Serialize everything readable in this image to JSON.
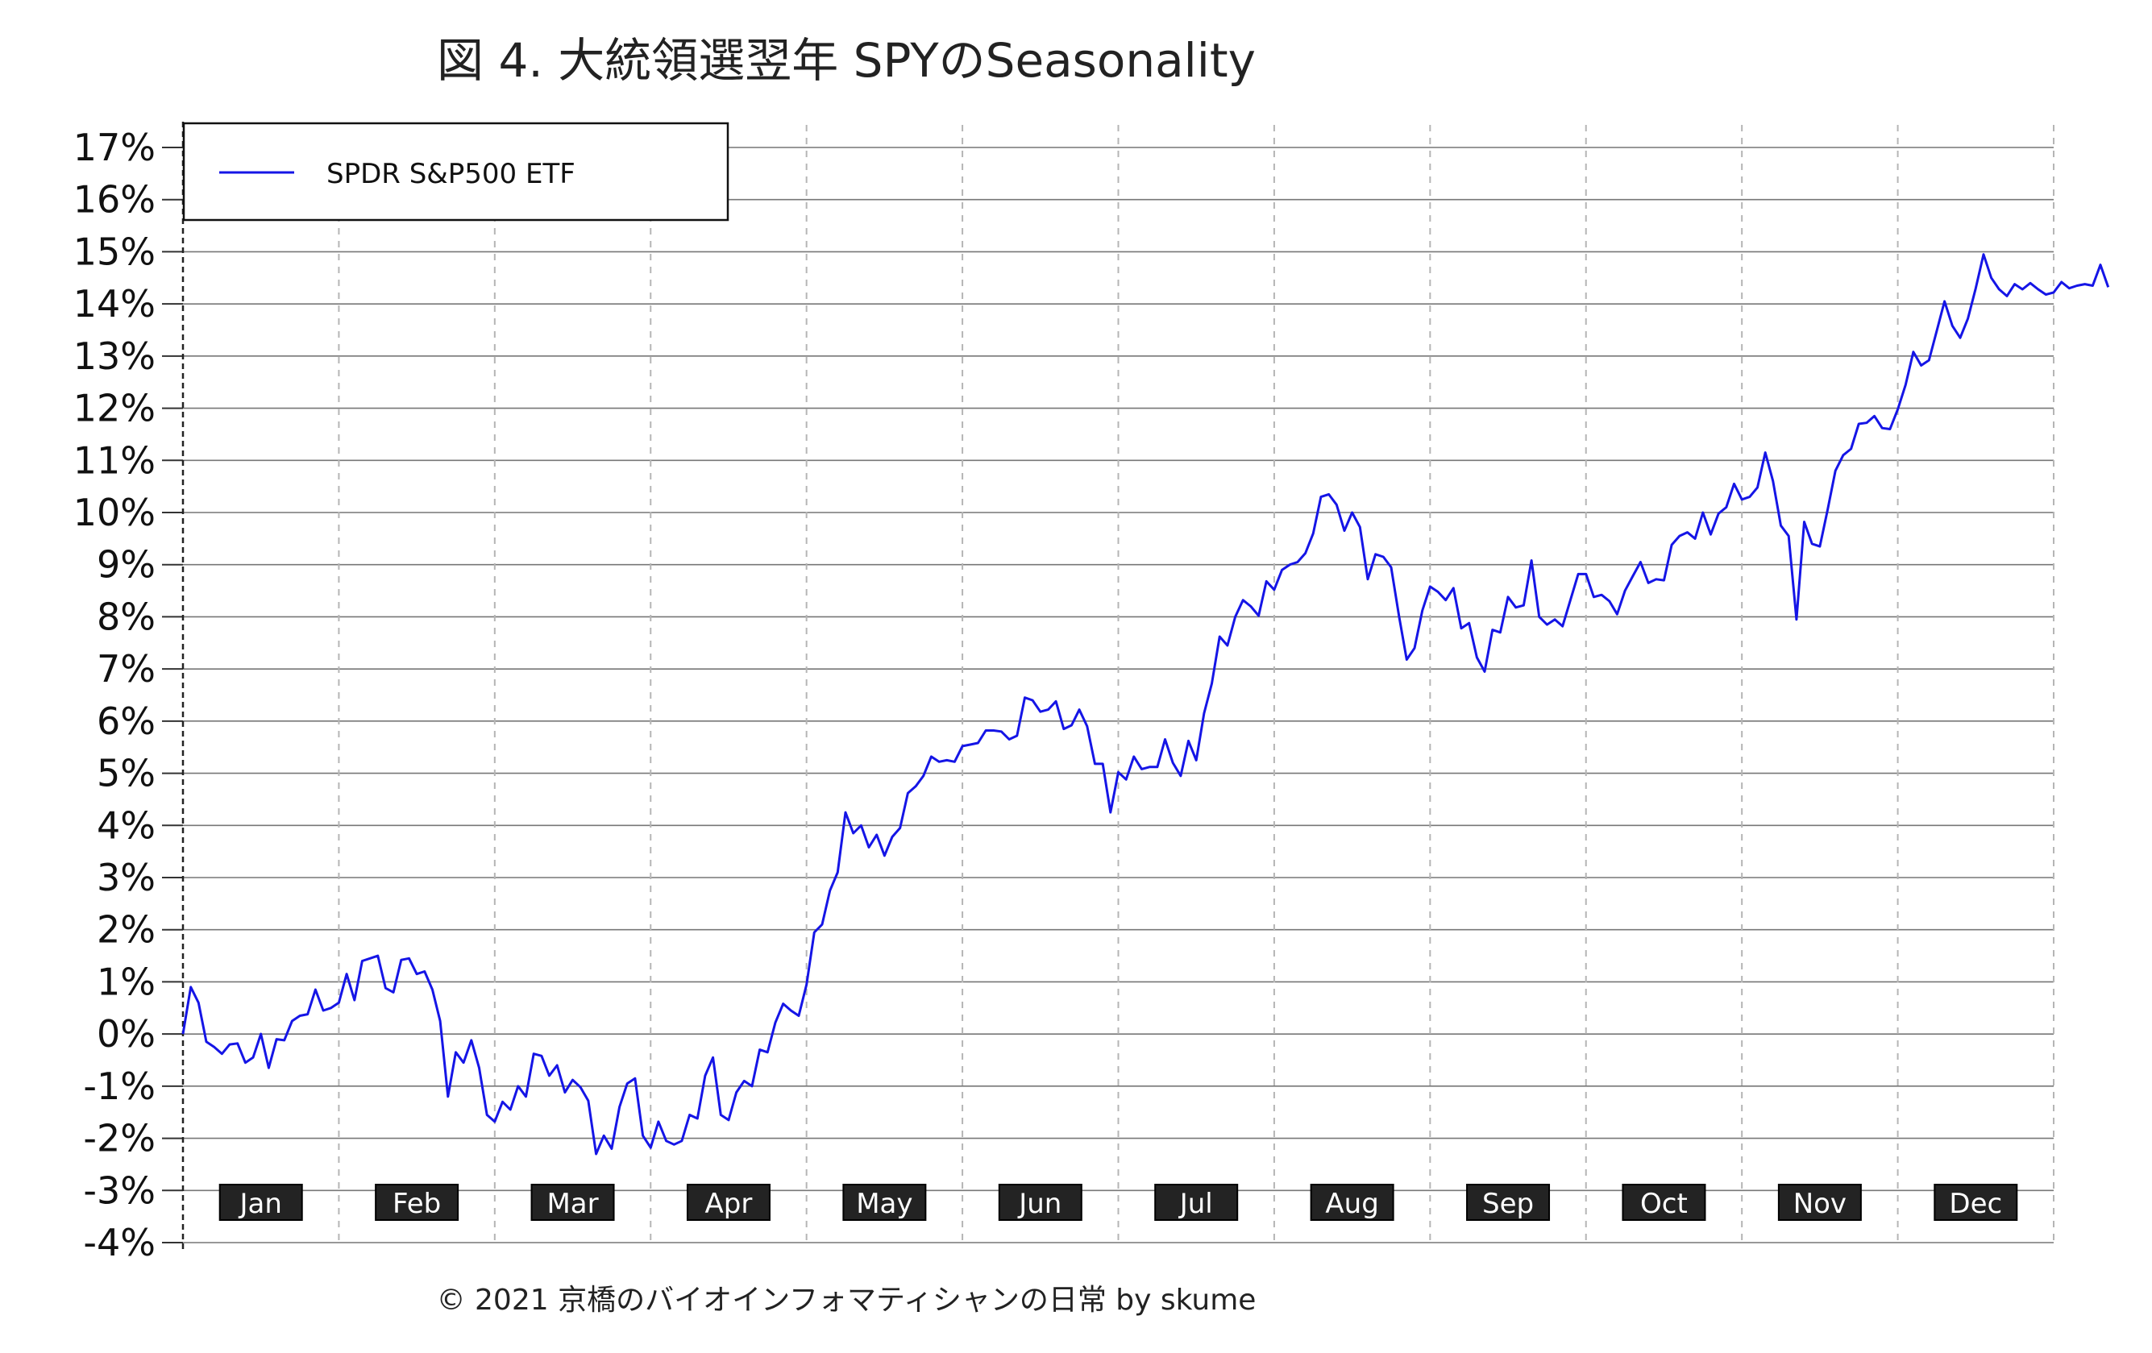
{
  "chart_data": {
    "type": "line",
    "title": "図 4. 大統領選翌年 SPYのSeasonality",
    "footer": "© 2021 京橋のバイオインフォマティシャンの日常 by skume",
    "xlabel": "",
    "ylabel": "",
    "ylim": [
      -4,
      17
    ],
    "y_ticks": [
      17,
      16,
      15,
      14,
      13,
      12,
      11,
      10,
      9,
      8,
      7,
      6,
      5,
      4,
      3,
      2,
      1,
      0,
      -1,
      -2,
      -3,
      -4
    ],
    "y_tick_labels": [
      "17%",
      "16%",
      "15%",
      "14%",
      "13%",
      "12%",
      "11%",
      "10%",
      "9%",
      "8%",
      "7%",
      "6%",
      "5%",
      "4%",
      "3%",
      "2%",
      "1%",
      "0%",
      "-1%",
      "-2%",
      "-3%",
      "-4%"
    ],
    "x_range": [
      0,
      12
    ],
    "grid": true,
    "legend_position": "top-left",
    "months": [
      "Jan",
      "Feb",
      "Mar",
      "Apr",
      "May",
      "Jun",
      "Jul",
      "Aug",
      "Sep",
      "Oct",
      "Nov",
      "Dec"
    ],
    "line_color": "#1515e6",
    "series": [
      {
        "name": "SPDR S&P500 ETF",
        "color": "#1515e6",
        "points": [
          [
            0.0,
            0.0
          ],
          [
            0.05,
            0.9
          ],
          [
            0.1,
            0.6
          ],
          [
            0.15,
            -0.15
          ],
          [
            0.2,
            -0.25
          ],
          [
            0.25,
            -0.38
          ],
          [
            0.3,
            -0.2
          ],
          [
            0.35,
            -0.18
          ],
          [
            0.4,
            -0.55
          ],
          [
            0.45,
            -0.45
          ],
          [
            0.5,
            0.0
          ],
          [
            0.55,
            -0.65
          ],
          [
            0.6,
            -0.1
          ],
          [
            0.65,
            -0.12
          ],
          [
            0.7,
            0.25
          ],
          [
            0.75,
            0.35
          ],
          [
            0.8,
            0.38
          ],
          [
            0.85,
            0.85
          ],
          [
            0.9,
            0.45
          ],
          [
            0.95,
            0.5
          ],
          [
            1.0,
            0.6
          ],
          [
            1.05,
            1.15
          ],
          [
            1.1,
            0.65
          ],
          [
            1.15,
            1.4
          ],
          [
            1.2,
            1.45
          ],
          [
            1.25,
            1.5
          ],
          [
            1.3,
            0.88
          ],
          [
            1.35,
            0.8
          ],
          [
            1.4,
            1.42
          ],
          [
            1.45,
            1.45
          ],
          [
            1.5,
            1.15
          ],
          [
            1.55,
            1.2
          ],
          [
            1.6,
            0.85
          ],
          [
            1.65,
            0.25
          ],
          [
            1.7,
            -1.2
          ],
          [
            1.75,
            -0.35
          ],
          [
            1.8,
            -0.55
          ],
          [
            1.85,
            -0.12
          ],
          [
            1.9,
            -0.65
          ],
          [
            1.95,
            -1.55
          ],
          [
            2.0,
            -1.68
          ],
          [
            2.05,
            -1.3
          ],
          [
            2.1,
            -1.45
          ],
          [
            2.15,
            -1.0
          ],
          [
            2.2,
            -1.2
          ],
          [
            2.25,
            -0.38
          ],
          [
            2.3,
            -0.42
          ],
          [
            2.35,
            -0.8
          ],
          [
            2.4,
            -0.6
          ],
          [
            2.45,
            -1.12
          ],
          [
            2.5,
            -0.88
          ],
          [
            2.55,
            -1.02
          ],
          [
            2.6,
            -1.28
          ],
          [
            2.65,
            -2.3
          ],
          [
            2.7,
            -1.95
          ],
          [
            2.75,
            -2.2
          ],
          [
            2.8,
            -1.4
          ],
          [
            2.85,
            -0.95
          ],
          [
            2.9,
            -0.85
          ],
          [
            2.95,
            -1.95
          ],
          [
            3.0,
            -2.18
          ],
          [
            3.05,
            -1.68
          ],
          [
            3.1,
            -2.05
          ],
          [
            3.15,
            -2.12
          ],
          [
            3.2,
            -2.05
          ],
          [
            3.25,
            -1.55
          ],
          [
            3.3,
            -1.62
          ],
          [
            3.35,
            -0.8
          ],
          [
            3.4,
            -0.45
          ],
          [
            3.45,
            -1.55
          ],
          [
            3.5,
            -1.65
          ],
          [
            3.55,
            -1.12
          ],
          [
            3.6,
            -0.9
          ],
          [
            3.65,
            -1.0
          ],
          [
            3.7,
            -0.3
          ],
          [
            3.75,
            -0.35
          ],
          [
            3.8,
            0.22
          ],
          [
            3.85,
            0.58
          ],
          [
            3.9,
            0.45
          ],
          [
            3.95,
            0.35
          ],
          [
            4.0,
            0.95
          ],
          [
            4.05,
            1.95
          ],
          [
            4.1,
            2.1
          ],
          [
            4.15,
            2.75
          ],
          [
            4.2,
            3.1
          ],
          [
            4.25,
            4.25
          ],
          [
            4.3,
            3.85
          ],
          [
            4.35,
            4.0
          ],
          [
            4.4,
            3.58
          ],
          [
            4.45,
            3.82
          ],
          [
            4.5,
            3.42
          ],
          [
            4.55,
            3.78
          ],
          [
            4.6,
            3.95
          ],
          [
            4.65,
            4.62
          ],
          [
            4.7,
            4.75
          ],
          [
            4.75,
            4.95
          ],
          [
            4.8,
            5.32
          ],
          [
            4.85,
            5.22
          ],
          [
            4.9,
            5.25
          ],
          [
            4.95,
            5.22
          ],
          [
            5.0,
            5.52
          ],
          [
            5.05,
            5.55
          ],
          [
            5.1,
            5.58
          ],
          [
            5.15,
            5.82
          ],
          [
            5.2,
            5.82
          ],
          [
            5.25,
            5.8
          ],
          [
            5.3,
            5.65
          ],
          [
            5.35,
            5.72
          ],
          [
            5.4,
            6.45
          ],
          [
            5.45,
            6.4
          ],
          [
            5.5,
            6.18
          ],
          [
            5.55,
            6.22
          ],
          [
            5.6,
            6.38
          ],
          [
            5.65,
            5.85
          ],
          [
            5.7,
            5.92
          ],
          [
            5.75,
            6.22
          ],
          [
            5.8,
            5.9
          ],
          [
            5.85,
            5.18
          ],
          [
            5.9,
            5.18
          ],
          [
            5.95,
            4.25
          ],
          [
            6.0,
            5.02
          ],
          [
            6.05,
            4.88
          ],
          [
            6.1,
            5.32
          ],
          [
            6.15,
            5.08
          ],
          [
            6.2,
            5.12
          ],
          [
            6.25,
            5.12
          ],
          [
            6.3,
            5.65
          ],
          [
            6.35,
            5.2
          ],
          [
            6.4,
            4.95
          ],
          [
            6.45,
            5.62
          ],
          [
            6.5,
            5.25
          ],
          [
            6.55,
            6.15
          ],
          [
            6.6,
            6.72
          ],
          [
            6.65,
            7.62
          ],
          [
            6.7,
            7.45
          ],
          [
            6.75,
            8.0
          ],
          [
            6.8,
            8.32
          ],
          [
            6.85,
            8.2
          ],
          [
            6.9,
            8.02
          ],
          [
            6.95,
            8.68
          ],
          [
            7.0,
            8.52
          ],
          [
            7.05,
            8.9
          ],
          [
            7.1,
            9.0
          ],
          [
            7.15,
            9.05
          ],
          [
            7.2,
            9.22
          ],
          [
            7.25,
            9.6
          ],
          [
            7.3,
            10.3
          ],
          [
            7.35,
            10.35
          ],
          [
            7.4,
            10.15
          ],
          [
            7.45,
            9.65
          ],
          [
            7.5,
            10.0
          ],
          [
            7.55,
            9.72
          ],
          [
            7.6,
            8.72
          ],
          [
            7.65,
            9.2
          ],
          [
            7.7,
            9.15
          ],
          [
            7.75,
            8.95
          ],
          [
            7.8,
            8.02
          ],
          [
            7.85,
            7.18
          ],
          [
            7.9,
            7.4
          ],
          [
            7.95,
            8.12
          ],
          [
            8.0,
            8.58
          ],
          [
            8.05,
            8.48
          ],
          [
            8.1,
            8.32
          ],
          [
            8.15,
            8.55
          ],
          [
            8.2,
            7.78
          ],
          [
            8.25,
            7.88
          ],
          [
            8.3,
            7.22
          ],
          [
            8.35,
            6.95
          ],
          [
            8.4,
            7.75
          ],
          [
            8.45,
            7.7
          ],
          [
            8.5,
            8.38
          ],
          [
            8.55,
            8.18
          ],
          [
            8.6,
            8.22
          ],
          [
            8.65,
            9.08
          ],
          [
            8.7,
            8.0
          ],
          [
            8.75,
            7.85
          ],
          [
            8.8,
            7.95
          ],
          [
            8.85,
            7.82
          ],
          [
            8.9,
            8.32
          ],
          [
            8.95,
            8.82
          ],
          [
            9.0,
            8.82
          ],
          [
            9.05,
            8.38
          ],
          [
            9.1,
            8.42
          ],
          [
            9.15,
            8.3
          ],
          [
            9.2,
            8.05
          ],
          [
            9.25,
            8.5
          ],
          [
            9.3,
            8.78
          ],
          [
            9.35,
            9.05
          ],
          [
            9.4,
            8.65
          ],
          [
            9.45,
            8.72
          ],
          [
            9.5,
            8.7
          ],
          [
            9.55,
            9.38
          ],
          [
            9.6,
            9.55
          ],
          [
            9.65,
            9.62
          ],
          [
            9.7,
            9.5
          ],
          [
            9.75,
            10.0
          ],
          [
            9.8,
            9.58
          ],
          [
            9.85,
            9.98
          ],
          [
            9.9,
            10.1
          ],
          [
            9.95,
            10.55
          ],
          [
            10.0,
            10.25
          ],
          [
            10.05,
            10.3
          ],
          [
            10.1,
            10.48
          ],
          [
            10.15,
            11.15
          ],
          [
            10.2,
            10.6
          ],
          [
            10.25,
            9.75
          ],
          [
            10.3,
            9.55
          ],
          [
            10.35,
            7.95
          ],
          [
            10.4,
            9.82
          ],
          [
            10.45,
            9.4
          ],
          [
            10.5,
            9.35
          ],
          [
            10.55,
            10.05
          ],
          [
            10.6,
            10.8
          ],
          [
            10.65,
            11.1
          ],
          [
            10.7,
            11.22
          ],
          [
            10.75,
            11.7
          ],
          [
            10.8,
            11.72
          ],
          [
            10.85,
            11.85
          ],
          [
            10.9,
            11.62
          ],
          [
            10.95,
            11.6
          ],
          [
            11.0,
            11.98
          ],
          [
            11.05,
            12.45
          ],
          [
            11.1,
            13.08
          ],
          [
            11.15,
            12.82
          ],
          [
            11.2,
            12.92
          ],
          [
            11.25,
            13.48
          ],
          [
            11.3,
            14.05
          ],
          [
            11.35,
            13.58
          ],
          [
            11.4,
            13.35
          ],
          [
            11.45,
            13.72
          ],
          [
            11.5,
            14.3
          ],
          [
            11.55,
            14.95
          ],
          [
            11.6,
            14.5
          ],
          [
            11.65,
            14.28
          ],
          [
            11.7,
            14.15
          ],
          [
            11.75,
            14.38
          ],
          [
            11.8,
            14.28
          ],
          [
            11.85,
            14.4
          ],
          [
            11.9,
            14.28
          ],
          [
            11.95,
            14.18
          ],
          [
            12.0,
            14.22
          ],
          [
            12.05,
            14.42
          ],
          [
            12.1,
            14.3
          ],
          [
            12.15,
            14.35
          ],
          [
            12.2,
            14.38
          ],
          [
            12.25,
            14.35
          ],
          [
            12.3,
            14.75
          ],
          [
            12.35,
            14.32
          ]
        ]
      }
    ]
  }
}
